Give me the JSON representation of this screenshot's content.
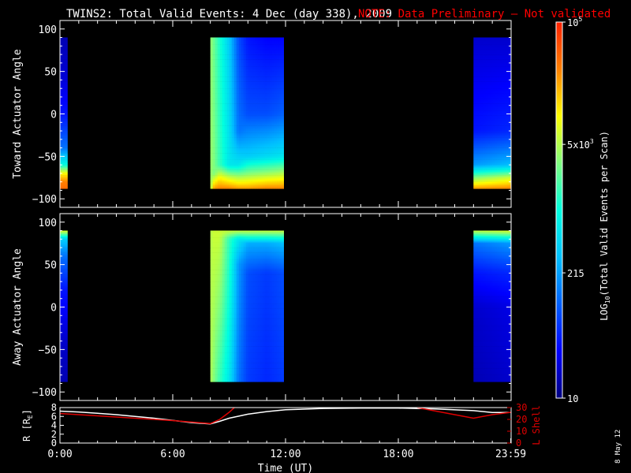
{
  "header": {
    "title": "TWINS2: Total Valid Events:  4 Dec (day 338), 2009",
    "note": "NOTE: Data Preliminary — Not validated"
  },
  "footer": {
    "date_stamp": "8 May 12"
  },
  "colors": {
    "background": "#000000",
    "foreground": "#ffffff",
    "note": "#ff0000",
    "orbit_l_shell": "#dd0000",
    "orbit_r": "#ffffff"
  },
  "colorbar": {
    "label": "LOG10(Total Valid Events per Scan)",
    "label_main": "LOG",
    "label_sub": "10",
    "label_rest": "(Total Valid Events per Scan)",
    "scale": "log",
    "range": [
      10,
      100000
    ],
    "ticks": [
      {
        "value": 10,
        "label": "10"
      },
      {
        "value": 215,
        "label": "215"
      },
      {
        "value": 5000,
        "label": "5x10",
        "exp": "3"
      },
      {
        "value": 100000,
        "label": "10",
        "exp": "5"
      }
    ],
    "colormap": [
      "#000080",
      "#0000ff",
      "#0060ff",
      "#00c0ff",
      "#00ffe0",
      "#80ff80",
      "#ffff00",
      "#ff8000",
      "#ff2000"
    ]
  },
  "chart_data": [
    {
      "type": "heatmap",
      "name": "toward-panel",
      "ylabel": "Toward Actuator Angle",
      "xlim": [
        0,
        24
      ],
      "ylim": [
        -110,
        110
      ],
      "yticks": [
        -100,
        -50,
        0,
        50,
        100
      ],
      "data_angle_range": [
        -88,
        90
      ],
      "segments": [
        {
          "t_start": 0.0,
          "t_end": 0.4,
          "columns": [
            {
              "t": 0.2,
              "profile": [
                [
                  90,
                  1.2
                ],
                [
                  40,
                  1.35
                ],
                [
                  0,
                  1.6
                ],
                [
                  -40,
                  2.1
                ],
                [
                  -60,
                  3.0
                ],
                [
                  -70,
                  4.0
                ],
                [
                  -80,
                  4.5
                ],
                [
                  -88,
                  4.6
                ]
              ]
            }
          ]
        },
        {
          "t_start": 8.0,
          "t_end": 11.9,
          "columns": [
            {
              "t": 8.0,
              "profile": [
                [
                  90,
                  3.6
                ],
                [
                  -88,
                  3.6
                ]
              ]
            },
            {
              "t": 8.2,
              "profile": [
                [
                  90,
                  3.4
                ],
                [
                  -70,
                  3.5
                ],
                [
                  -88,
                  4.4
                ]
              ]
            },
            {
              "t": 8.5,
              "profile": [
                [
                  90,
                  3.1
                ],
                [
                  -60,
                  3.2
                ],
                [
                  -75,
                  4.0
                ],
                [
                  -88,
                  4.5
                ]
              ]
            },
            {
              "t": 9.0,
              "profile": [
                [
                  90,
                  2.6
                ],
                [
                  -60,
                  2.8
                ],
                [
                  -75,
                  3.8
                ],
                [
                  -88,
                  4.5
                ]
              ]
            },
            {
              "t": 9.5,
              "profile": [
                [
                  90,
                  1.9
                ],
                [
                  -20,
                  2.1
                ],
                [
                  -60,
                  2.8
                ],
                [
                  -75,
                  3.7
                ],
                [
                  -88,
                  4.4
                ]
              ]
            },
            {
              "t": 10.0,
              "profile": [
                [
                  90,
                  1.6
                ],
                [
                  0,
                  1.9
                ],
                [
                  -50,
                  2.6
                ],
                [
                  -70,
                  3.5
                ],
                [
                  -88,
                  4.4
                ]
              ]
            },
            {
              "t": 11.0,
              "profile": [
                [
                  90,
                  1.5
                ],
                [
                  0,
                  1.9
                ],
                [
                  -50,
                  2.7
                ],
                [
                  -70,
                  3.6
                ],
                [
                  -88,
                  4.5
                ]
              ]
            },
            {
              "t": 11.9,
              "profile": [
                [
                  90,
                  1.5
                ],
                [
                  0,
                  2.0
                ],
                [
                  -50,
                  2.8
                ],
                [
                  -70,
                  3.7
                ],
                [
                  -88,
                  4.5
                ]
              ]
            }
          ]
        },
        {
          "t_start": 22.0,
          "t_end": 24.0,
          "columns": [
            {
              "t": 22.0,
              "profile": [
                [
                  90,
                  1.3
                ],
                [
                  -20,
                  1.6
                ],
                [
                  -60,
                  2.3
                ],
                [
                  -75,
                  3.5
                ],
                [
                  -88,
                  4.4
                ]
              ]
            },
            {
              "t": 24.0,
              "profile": [
                [
                  90,
                  1.3
                ],
                [
                  -20,
                  1.7
                ],
                [
                  -60,
                  2.5
                ],
                [
                  -75,
                  3.8
                ],
                [
                  -88,
                  4.5
                ]
              ]
            }
          ]
        }
      ]
    },
    {
      "type": "heatmap",
      "name": "away-panel",
      "ylabel": "Away Actuator Angle",
      "xlim": [
        0,
        24
      ],
      "ylim": [
        -110,
        110
      ],
      "yticks": [
        -100,
        -50,
        0,
        50,
        100
      ],
      "data_angle_range": [
        -88,
        90
      ],
      "segments": [
        {
          "t_start": 0.0,
          "t_end": 0.4,
          "columns": [
            {
              "t": 0.2,
              "profile": [
                [
                  90,
                  3.9
                ],
                [
                  80,
                  2.6
                ],
                [
                  60,
                  2.1
                ],
                [
                  20,
                  1.6
                ],
                [
                  -40,
                  1.3
                ],
                [
                  -88,
                  1.2
                ]
              ]
            }
          ]
        },
        {
          "t_start": 8.0,
          "t_end": 11.9,
          "columns": [
            {
              "t": 8.0,
              "profile": [
                [
                  90,
                  3.7
                ],
                [
                  -88,
                  3.7
                ]
              ]
            },
            {
              "t": 8.2,
              "profile": [
                [
                  90,
                  3.8
                ],
                [
                  -88,
                  3.5
                ]
              ]
            },
            {
              "t": 8.5,
              "profile": [
                [
                  90,
                  3.8
                ],
                [
                  -88,
                  3.2
                ]
              ]
            },
            {
              "t": 9.0,
              "profile": [
                [
                  90,
                  3.8
                ],
                [
                  80,
                  3.2
                ],
                [
                  -88,
                  2.8
                ]
              ]
            },
            {
              "t": 9.5,
              "profile": [
                [
                  90,
                  3.8
                ],
                [
                  80,
                  2.8
                ],
                [
                  50,
                  2.3
                ],
                [
                  -88,
                  2.1
                ]
              ]
            },
            {
              "t": 10.0,
              "profile": [
                [
                  90,
                  3.8
                ],
                [
                  75,
                  2.4
                ],
                [
                  40,
                  1.9
                ],
                [
                  -88,
                  1.8
                ]
              ]
            },
            {
              "t": 11.0,
              "profile": [
                [
                  90,
                  3.8
                ],
                [
                  75,
                  2.4
                ],
                [
                  40,
                  1.8
                ],
                [
                  -88,
                  1.7
                ]
              ]
            },
            {
              "t": 11.9,
              "profile": [
                [
                  90,
                  3.8
                ],
                [
                  75,
                  2.5
                ],
                [
                  40,
                  1.9
                ],
                [
                  -88,
                  1.8
                ]
              ]
            }
          ]
        },
        {
          "t_start": 22.0,
          "t_end": 24.0,
          "columns": [
            {
              "t": 22.0,
              "profile": [
                [
                  90,
                  3.8
                ],
                [
                  75,
                  2.1
                ],
                [
                  40,
                  1.6
                ],
                [
                  0,
                  1.3
                ],
                [
                  -88,
                  1.2
                ]
              ]
            },
            {
              "t": 24.0,
              "profile": [
                [
                  90,
                  3.9
                ],
                [
                  75,
                  2.3
                ],
                [
                  40,
                  1.7
                ],
                [
                  0,
                  1.4
                ],
                [
                  -88,
                  1.3
                ]
              ]
            }
          ]
        }
      ]
    },
    {
      "type": "line",
      "name": "orbit-panel",
      "xlabel": "Time (UT)",
      "xticks": [
        {
          "value": 0,
          "label": "0:00"
        },
        {
          "value": 6,
          "label": "6:00"
        },
        {
          "value": 12,
          "label": "12:00"
        },
        {
          "value": 18,
          "label": "18:00"
        },
        {
          "value": 23.98,
          "label": "23:59"
        }
      ],
      "xlim": [
        0,
        24
      ],
      "ylabel_left": "R [R",
      "ylabel_left_sub": "E",
      "ylabel_left_end": "]",
      "ylim_left": [
        0,
        8
      ],
      "yticks_left": [
        0,
        2,
        4,
        6,
        8
      ],
      "ylabel_right": "L Shell",
      "ylim_right": [
        0,
        30
      ],
      "yticks_right": [
        0,
        10,
        20,
        30
      ],
      "series": [
        {
          "name": "R",
          "axis": "left",
          "x": [
            0,
            1,
            2,
            3,
            4,
            5,
            6,
            7,
            8.0,
            8.5,
            9,
            10,
            11,
            12,
            14,
            16,
            18,
            20,
            22,
            23,
            24
          ],
          "y": [
            7.2,
            7.0,
            6.7,
            6.4,
            6.0,
            5.6,
            5.1,
            4.6,
            4.3,
            4.9,
            5.6,
            6.5,
            7.1,
            7.5,
            7.8,
            7.9,
            7.9,
            7.7,
            7.3,
            6.9,
            6.9
          ]
        },
        {
          "name": "L Shell",
          "axis": "right",
          "x": [
            0,
            2,
            4,
            6,
            8.0,
            8.5,
            9.0,
            9.35,
            null,
            19.0,
            20,
            21,
            22.0,
            23,
            24
          ],
          "y": [
            25,
            23,
            21,
            19,
            16.5,
            20,
            26,
            31,
            null,
            30,
            27,
            24,
            21,
            24,
            26
          ]
        }
      ]
    }
  ]
}
